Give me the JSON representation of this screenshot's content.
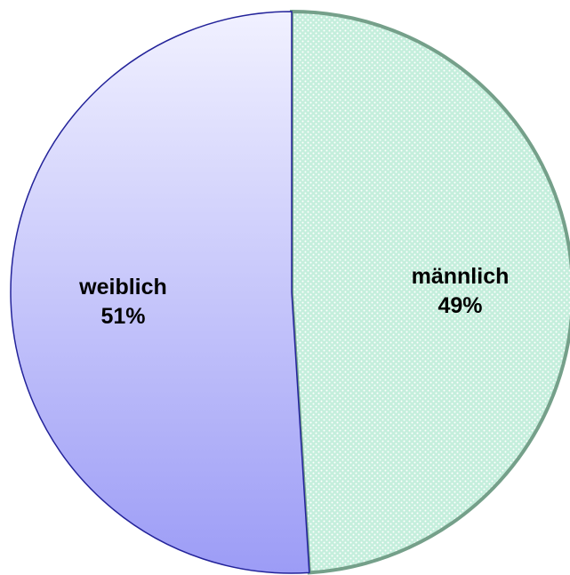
{
  "chart_data": {
    "type": "pie",
    "categories": [
      "männlich",
      "weiblich"
    ],
    "values": [
      49,
      51
    ],
    "value_labels": [
      "49%",
      "51%"
    ],
    "colors": [
      "#c4eedc",
      "#c9c9fb"
    ],
    "edge_colors": [
      "#75a08a",
      "#23239a"
    ]
  }
}
